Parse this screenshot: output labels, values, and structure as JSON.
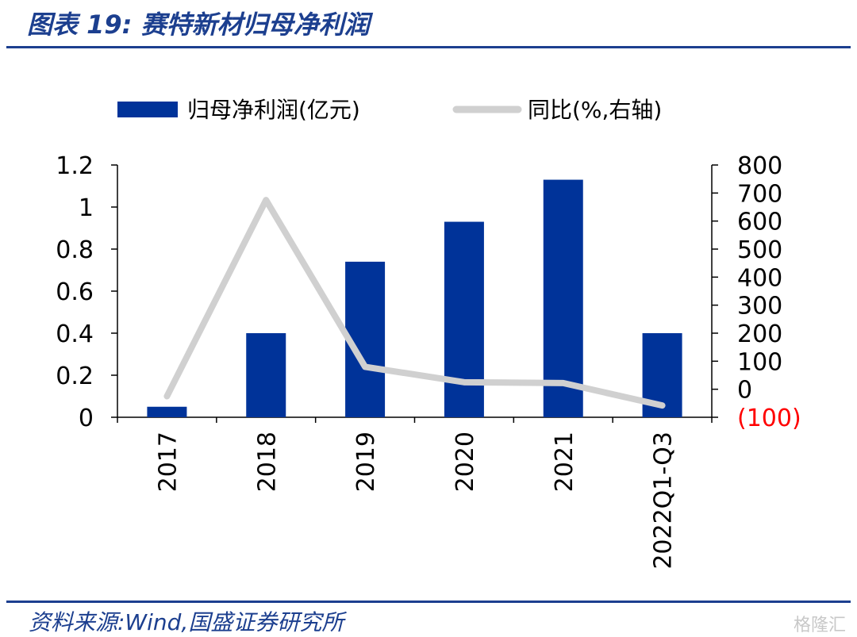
{
  "header": {
    "title": "图表 19:  赛特新材归母净利润"
  },
  "footer": {
    "source": "资料来源:Wind,国盛证券研究所",
    "watermark": "格隆汇"
  },
  "chart_data": {
    "type": "bar",
    "categories": [
      "2017",
      "2018",
      "2019",
      "2020",
      "2021",
      "2022Q1-Q3"
    ],
    "series": [
      {
        "name": "归母净利润(亿元)",
        "type": "bar",
        "axis": "left",
        "values": [
          0.05,
          0.4,
          0.74,
          0.93,
          1.13,
          0.4
        ],
        "color": "#003399"
      },
      {
        "name": "同比(%,右轴)",
        "type": "line",
        "axis": "right",
        "values": [
          -25,
          675,
          80,
          25,
          22,
          -58
        ],
        "color": "#d0d0d0"
      }
    ],
    "left_axis": {
      "ylim": [
        0,
        1.2
      ],
      "ticks": [
        "0",
        "0.2",
        "0.4",
        "0.6",
        "0.8",
        "1",
        "1.2"
      ]
    },
    "right_axis": {
      "ylim": [
        -100,
        800
      ],
      "ticks": [
        "(100)",
        "0",
        "100",
        "200",
        "300",
        "400",
        "500",
        "600",
        "700",
        "800"
      ],
      "negative_color": "#ff0000"
    },
    "legend_position": "top",
    "grid": false
  }
}
